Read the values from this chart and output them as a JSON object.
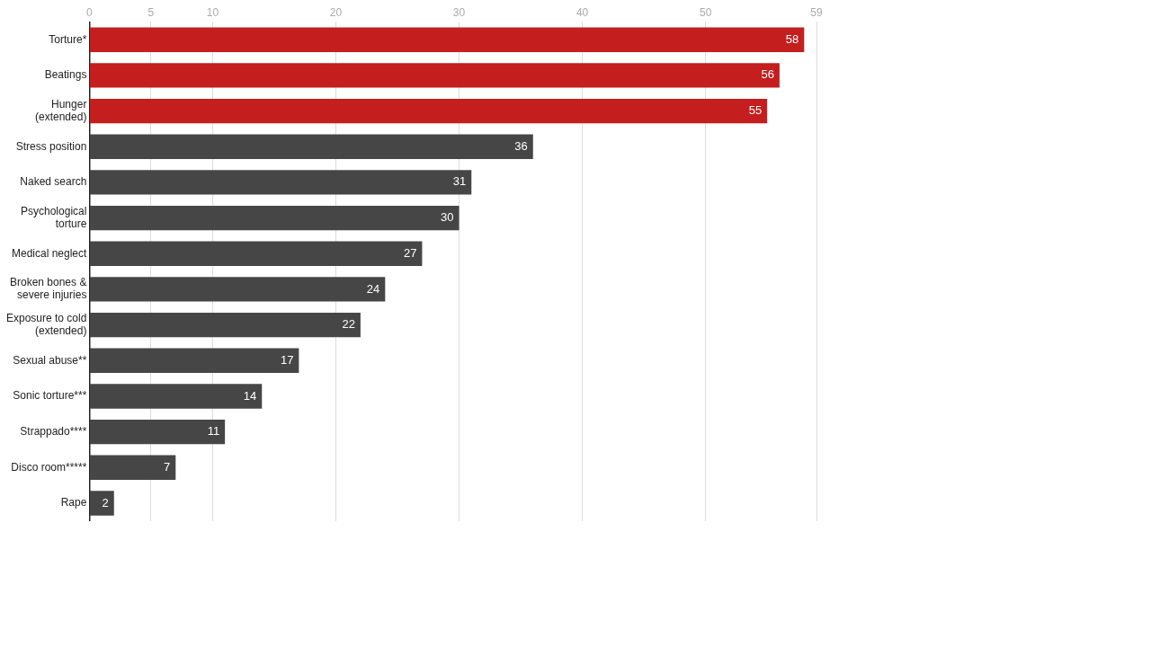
{
  "chart_data": {
    "type": "bar",
    "orientation": "horizontal",
    "categories": [
      "Torture*",
      "Beatings",
      "Hunger (extended)",
      "Stress position",
      "Naked search",
      "Psychological torture",
      "Medical neglect",
      "Broken bones & severe injuries",
      "Exposure to cold (extended)",
      "Sexual abuse**",
      "Sonic torture***",
      "Strappado****",
      "Disco room*****",
      "Rape"
    ],
    "values": [
      58,
      56,
      55,
      36,
      31,
      30,
      27,
      24,
      22,
      17,
      14,
      11,
      7,
      2
    ],
    "colors": [
      "#c41e1e",
      "#c41e1e",
      "#c41e1e",
      "#464646",
      "#464646",
      "#464646",
      "#464646",
      "#464646",
      "#464646",
      "#464646",
      "#464646",
      "#464646",
      "#464646",
      "#464646"
    ],
    "xlim": [
      0,
      59
    ],
    "xticks": [
      0,
      5,
      10,
      20,
      30,
      40,
      50,
      59
    ],
    "grid": "x",
    "data_labels": true,
    "legend": false
  }
}
